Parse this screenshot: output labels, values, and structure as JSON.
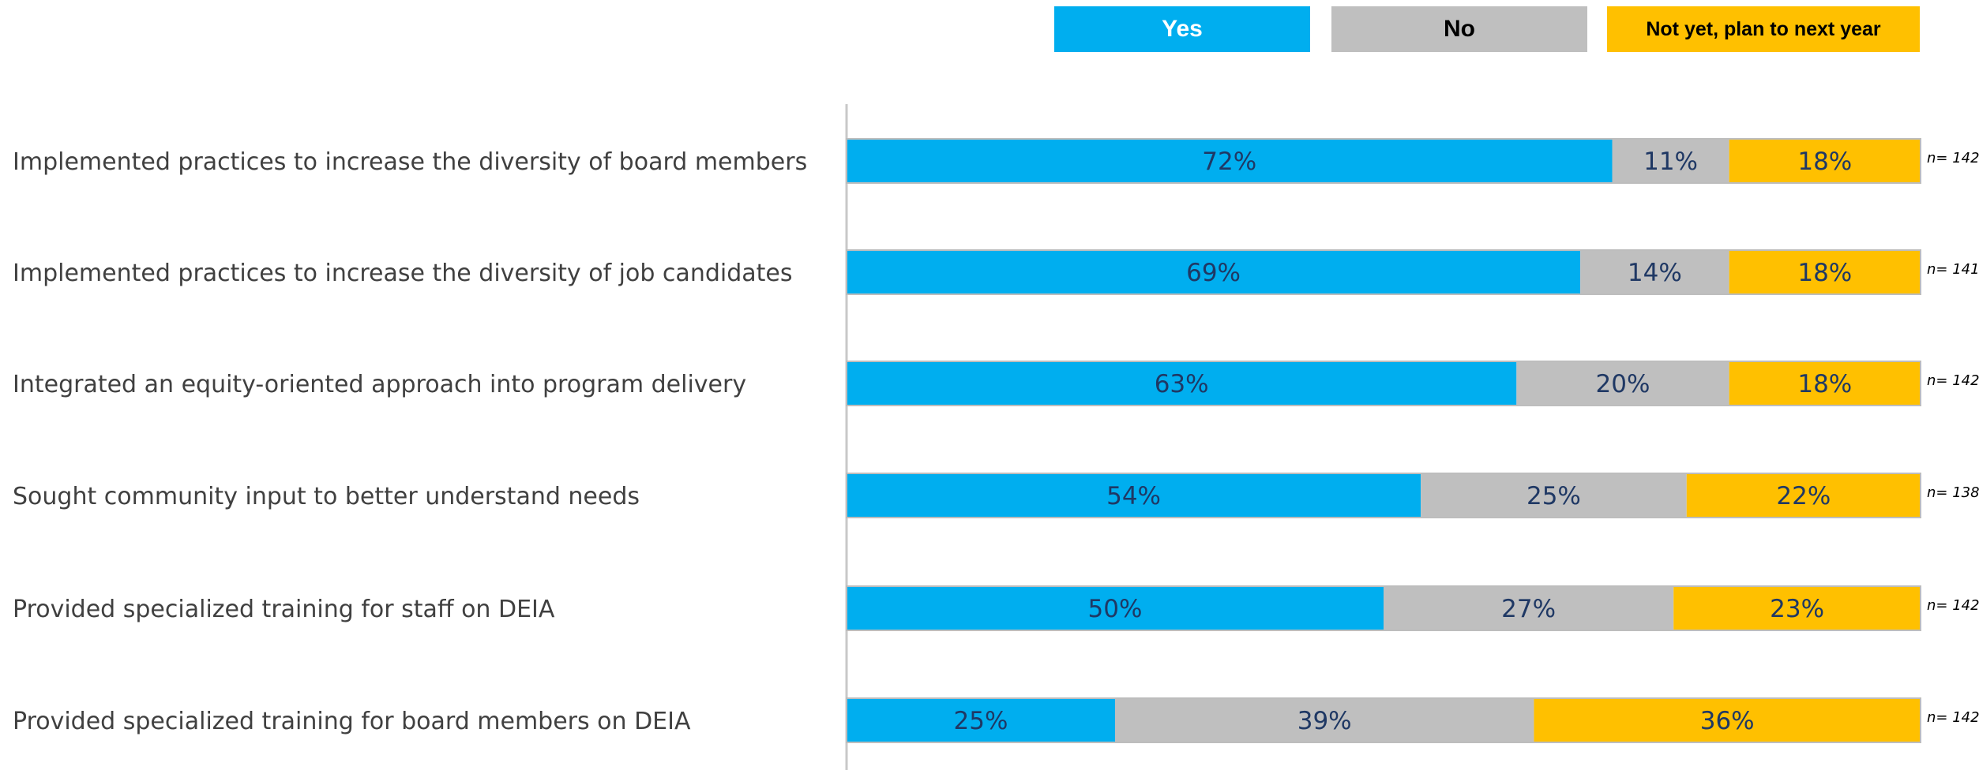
{
  "chart_data": {
    "type": "bar",
    "orientation": "horizontal",
    "stacked": true,
    "percent": true,
    "categories": [
      "Implemented practices to increase the diversity of board members",
      "Implemented practices to increase the diversity of job candidates",
      "Integrated an equity-oriented approach into program delivery",
      "Sought community input to better understand needs",
      "Provided specialized training for staff on DEIA",
      "Provided specialized training for board members on DEIA"
    ],
    "series": [
      {
        "name": "Yes",
        "color": "#00AEEF",
        "values": [
          72,
          69,
          63,
          54,
          50,
          25
        ],
        "labels": [
          "72%",
          "69%",
          "63%",
          "54%",
          "50%",
          "25%"
        ]
      },
      {
        "name": "No",
        "color": "#BFBFBF",
        "values": [
          11,
          14,
          20,
          25,
          27,
          39
        ],
        "labels": [
          "11%",
          "14%",
          "20%",
          "25%",
          "27%",
          "39%"
        ]
      },
      {
        "name": "Not yet, plan to next year",
        "color": "#FFC000",
        "values": [
          18,
          18,
          18,
          22,
          23,
          36
        ],
        "labels": [
          "18%",
          "18%",
          "18%",
          "22%",
          "23%",
          "36%"
        ]
      }
    ],
    "n_labels": [
      "n= 142",
      "n= 141",
      "n= 142",
      "n= 138",
      "n= 142",
      "n= 142"
    ],
    "legend_placement": "top-right",
    "legend_text_colors": [
      "#ffffff",
      "#000000",
      "#000000"
    ],
    "label_color": "#1F3864",
    "grid": false,
    "title": "",
    "xlabel": "",
    "ylabel": ""
  }
}
